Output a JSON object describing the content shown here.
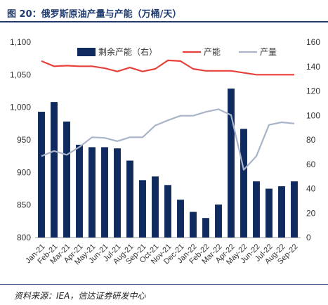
{
  "header": {
    "title": "图 20：俄罗斯原油产量与产能（万桶/天）"
  },
  "footer": {
    "source": "资料来源：IEA，信达证券研发中心"
  },
  "chart_data": {
    "type": "bar",
    "categories": [
      "Jan-21",
      "Feb-21",
      "Mar-21",
      "Apr-21",
      "May-21",
      "Jun-21",
      "Jul-21",
      "Aug-21",
      "Sep-21",
      "Oct-21",
      "Nov-21",
      "Dec-21",
      "Jan-22",
      "Feb-22",
      "Mar-22",
      "Apr-22",
      "May-22",
      "Jun-22",
      "Jul-22",
      "Aug-22",
      "Sep-22"
    ],
    "left_axis": {
      "ylim": [
        800,
        1100
      ],
      "ticks": [
        "800",
        "850",
        "900",
        "950",
        "1,000",
        "1,050",
        "1,100"
      ],
      "tick_values": [
        800,
        850,
        900,
        950,
        1000,
        1050,
        1100
      ]
    },
    "right_axis": {
      "ylim": [
        0,
        160
      ],
      "ticks": [
        "0",
        "20",
        "40",
        "60",
        "80",
        "100",
        "120",
        "140",
        "160"
      ],
      "tick_values": [
        0,
        20,
        40,
        60,
        80,
        100,
        120,
        140,
        160
      ]
    },
    "series": [
      {
        "name": "剩余产能（右）",
        "type": "bar",
        "axis": "right",
        "color": "#0f2a5e",
        "values": [
          103,
          111,
          95,
          76,
          74,
          74,
          73,
          63,
          47,
          50,
          43,
          31,
          21,
          16,
          27,
          122,
          89,
          46,
          40,
          42,
          46
        ]
      },
      {
        "name": "产能",
        "type": "line",
        "axis": "left",
        "color": "#e8413c",
        "values": [
          1071,
          1063,
          1064,
          1063,
          1063,
          1060,
          1055,
          1061,
          1055,
          1059,
          1072,
          1071,
          1059,
          1056,
          1056,
          1056,
          1053,
          1050,
          1050,
          1050,
          1050
        ]
      },
      {
        "name": "产量",
        "type": "line",
        "axis": "left",
        "color": "#aab4c8",
        "values": [
          925,
          933,
          927,
          939,
          954,
          953,
          948,
          954,
          954,
          972,
          980,
          987,
          987,
          993,
          997,
          988,
          904,
          925,
          973,
          977,
          975
        ]
      }
    ],
    "legend": "top"
  }
}
